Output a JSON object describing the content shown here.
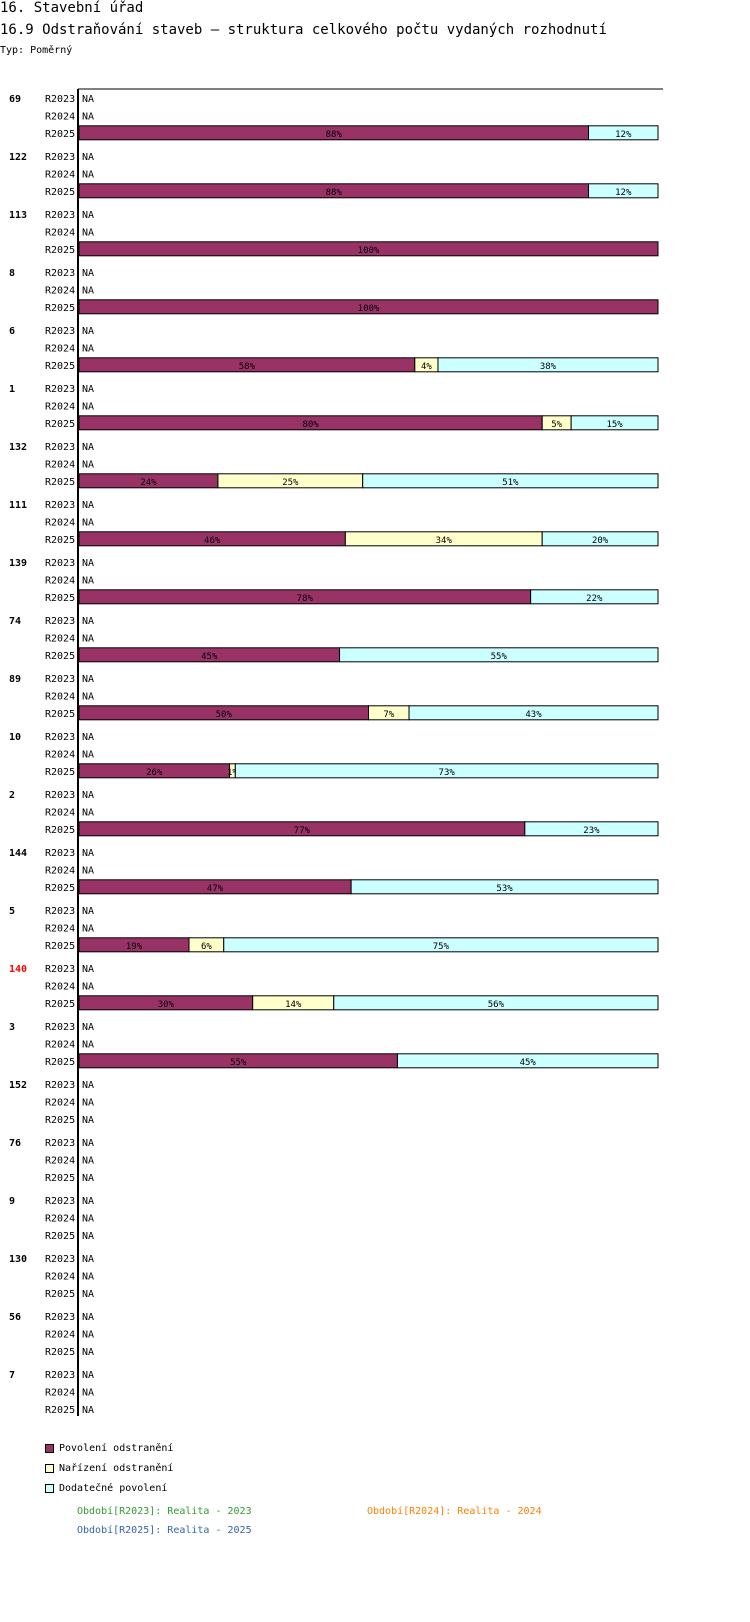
{
  "header": {
    "section_title": "16. Stavební úřad",
    "chart_title": "16.9 Odstraňování staveb – struktura celkového počtu vydaných rozhodnutí",
    "type_label": "Typ: Poměrný"
  },
  "colors": {
    "povoleni": "#993366",
    "narizeni": "#ffffcc",
    "dodatecne": "#ccffff",
    "highlight": "#ff0000",
    "r2023": "#339933",
    "r2024": "#ff8000",
    "r2025": "#3366aa"
  },
  "legend": [
    {
      "label": "Povolení odstranění",
      "color": "#993366"
    },
    {
      "label": "Nařízení odstranění",
      "color": "#ffffcc"
    },
    {
      "label": "Dodatečné povolení",
      "color": "#ccffff"
    }
  ],
  "periods": [
    {
      "text": "Období[R2023]: Realita - 2023",
      "color": "#339933"
    },
    {
      "text": "Období[R2024]: Realita - 2024",
      "color": "#ff8000"
    },
    {
      "text": "Období[R2025]: Realita - 2025",
      "color": "#3366aa"
    }
  ],
  "chart_data": {
    "type": "bar",
    "orientation": "horizontal",
    "stacked": true,
    "percent": true,
    "series_names": [
      "Povolení odstranění",
      "Nařízení odstranění",
      "Dodatečné povolení"
    ],
    "row_labels": [
      "R2023",
      "R2024",
      "R2025"
    ],
    "na_label": "NA",
    "groups": [
      {
        "id": "69",
        "values": [
          88,
          0,
          12
        ]
      },
      {
        "id": "122",
        "values": [
          88,
          0,
          12
        ]
      },
      {
        "id": "113",
        "values": [
          100,
          0,
          0
        ]
      },
      {
        "id": "8",
        "values": [
          100,
          0,
          0
        ]
      },
      {
        "id": "6",
        "values": [
          58,
          4,
          38
        ]
      },
      {
        "id": "1",
        "values": [
          80,
          5,
          15
        ]
      },
      {
        "id": "132",
        "values": [
          24,
          25,
          51
        ]
      },
      {
        "id": "111",
        "values": [
          46,
          34,
          20
        ]
      },
      {
        "id": "139",
        "values": [
          78,
          0,
          22
        ]
      },
      {
        "id": "74",
        "values": [
          45,
          0,
          55
        ]
      },
      {
        "id": "89",
        "values": [
          50,
          7,
          43
        ]
      },
      {
        "id": "10",
        "values": [
          26,
          1,
          73
        ]
      },
      {
        "id": "2",
        "values": [
          77,
          0,
          23
        ]
      },
      {
        "id": "144",
        "values": [
          47,
          0,
          53
        ]
      },
      {
        "id": "5",
        "values": [
          19,
          6,
          75
        ]
      },
      {
        "id": "140",
        "values": [
          30,
          14,
          56
        ],
        "highlight": true
      },
      {
        "id": "3",
        "values": [
          55,
          0,
          45
        ]
      },
      {
        "id": "152",
        "values": null
      },
      {
        "id": "76",
        "values": null
      },
      {
        "id": "9",
        "values": null
      },
      {
        "id": "130",
        "values": null
      },
      {
        "id": "56",
        "values": null
      },
      {
        "id": "7",
        "values": null
      }
    ]
  }
}
